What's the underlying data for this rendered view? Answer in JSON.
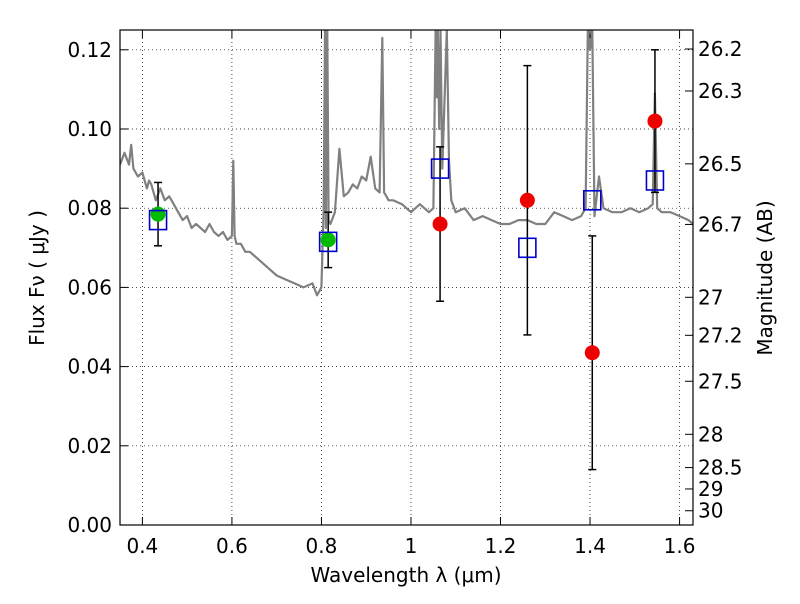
{
  "chart_data": {
    "type": "scatter",
    "xlabel": "Wavelength  λ (μm)",
    "ylabel": "Flux  Fν  ( μJy )",
    "y2label": "Magnitude (AB)",
    "xlim": [
      0.35,
      1.63
    ],
    "ylim": [
      0.0,
      0.125
    ],
    "grid": true,
    "x_ticks": [
      0.4,
      0.6,
      0.8,
      1.0,
      1.2,
      1.4,
      1.6
    ],
    "x_tick_labels": [
      "0.4",
      "0.6",
      "0.8",
      "1",
      "1.2",
      "1.4",
      "1.6"
    ],
    "y_ticks": [
      0.0,
      0.02,
      0.04,
      0.06,
      0.08,
      0.1,
      0.12
    ],
    "y_tick_labels": [
      "0.00",
      "0.02",
      "0.04",
      "0.06",
      "0.08",
      "0.10",
      "0.12"
    ],
    "y2_tick_labels": [
      "26.2",
      "26.3",
      "26.5",
      "26.7",
      "27",
      "27.2",
      "27.5",
      "28",
      "28.5",
      "29",
      "30"
    ],
    "y2_tick_flux": [
      0.1202,
      0.1096,
      0.0912,
      0.0759,
      0.0575,
      0.0479,
      0.0363,
      0.0229,
      0.0145,
      0.0091,
      0.0036
    ],
    "colors": {
      "spectrum": "#808080",
      "green_points": "#00bb00",
      "red_points": "#ee0000",
      "squares": "#0000cc",
      "errorbar": "#000000",
      "grid": "#000000"
    },
    "series": [
      {
        "marker": "line",
        "x": [
          0.35,
          0.36,
          0.37,
          0.375,
          0.38,
          0.39,
          0.4,
          0.41,
          0.415,
          0.42,
          0.43,
          0.44,
          0.45,
          0.46,
          0.47,
          0.48,
          0.49,
          0.5,
          0.51,
          0.52,
          0.53,
          0.54,
          0.55,
          0.56,
          0.57,
          0.58,
          0.59,
          0.6,
          0.603,
          0.606,
          0.61,
          0.62,
          0.63,
          0.64,
          0.66,
          0.68,
          0.7,
          0.72,
          0.74,
          0.76,
          0.78,
          0.79,
          0.8,
          0.805,
          0.808,
          0.81,
          0.813,
          0.816,
          0.82,
          0.83,
          0.84,
          0.85,
          0.86,
          0.87,
          0.88,
          0.89,
          0.9,
          0.91,
          0.92,
          0.93,
          0.936,
          0.94,
          0.945,
          0.95,
          0.96,
          0.98,
          1.0,
          1.02,
          1.04,
          1.05,
          1.055,
          1.058,
          1.06,
          1.063,
          1.066,
          1.07,
          1.08,
          1.085,
          1.09,
          1.1,
          1.12,
          1.14,
          1.16,
          1.18,
          1.2,
          1.22,
          1.24,
          1.26,
          1.28,
          1.3,
          1.32,
          1.34,
          1.36,
          1.38,
          1.39,
          1.395,
          1.4,
          1.405,
          1.41,
          1.42,
          1.43,
          1.45,
          1.47,
          1.49,
          1.51,
          1.53,
          1.54,
          1.545,
          1.55,
          1.56,
          1.58,
          1.6,
          1.62,
          1.63
        ],
        "y": [
          0.091,
          0.094,
          0.091,
          0.096,
          0.09,
          0.088,
          0.089,
          0.085,
          0.087,
          0.086,
          0.082,
          0.085,
          0.082,
          0.083,
          0.081,
          0.079,
          0.077,
          0.078,
          0.075,
          0.076,
          0.075,
          0.074,
          0.076,
          0.074,
          0.073,
          0.074,
          0.072,
          0.073,
          0.092,
          0.073,
          0.071,
          0.071,
          0.069,
          0.069,
          0.067,
          0.065,
          0.063,
          0.062,
          0.061,
          0.06,
          0.061,
          0.058,
          0.06,
          0.08,
          0.125,
          0.075,
          0.125,
          0.077,
          0.076,
          0.079,
          0.095,
          0.083,
          0.084,
          0.086,
          0.085,
          0.088,
          0.087,
          0.093,
          0.085,
          0.084,
          0.123,
          0.084,
          0.083,
          0.082,
          0.082,
          0.081,
          0.079,
          0.081,
          0.079,
          0.08,
          0.125,
          0.108,
          0.125,
          0.1,
          0.125,
          0.09,
          0.125,
          0.092,
          0.082,
          0.079,
          0.08,
          0.077,
          0.078,
          0.077,
          0.076,
          0.076,
          0.077,
          0.077,
          0.076,
          0.076,
          0.079,
          0.078,
          0.077,
          0.078,
          0.08,
          0.125,
          0.12,
          0.125,
          0.078,
          0.088,
          0.08,
          0.079,
          0.079,
          0.08,
          0.079,
          0.08,
          0.081,
          0.109,
          0.08,
          0.079,
          0.079,
          0.078,
          0.077,
          0.076
        ]
      },
      {
        "marker": "circle",
        "x": [
          0.435,
          0.815
        ],
        "y": [
          0.0785,
          0.072
        ],
        "yerr": [
          [
            0.008,
            0.008
          ],
          [
            0.007,
            0.007
          ]
        ]
      },
      {
        "marker": "circle",
        "x": [
          1.065,
          1.26,
          1.405,
          1.545
        ],
        "y": [
          0.076,
          0.082,
          0.0435,
          0.102
        ],
        "yerr": [
          [
            0.0195,
            0.0195
          ],
          [
            0.034,
            0.034
          ],
          [
            0.0295,
            0.0295
          ],
          [
            0.018,
            0.018
          ]
        ]
      },
      {
        "marker": "square",
        "x": [
          0.435,
          0.815,
          1.065,
          1.26,
          1.405,
          1.545
        ],
        "y": [
          0.077,
          0.0715,
          0.09,
          0.07,
          0.082,
          0.087
        ]
      }
    ]
  }
}
